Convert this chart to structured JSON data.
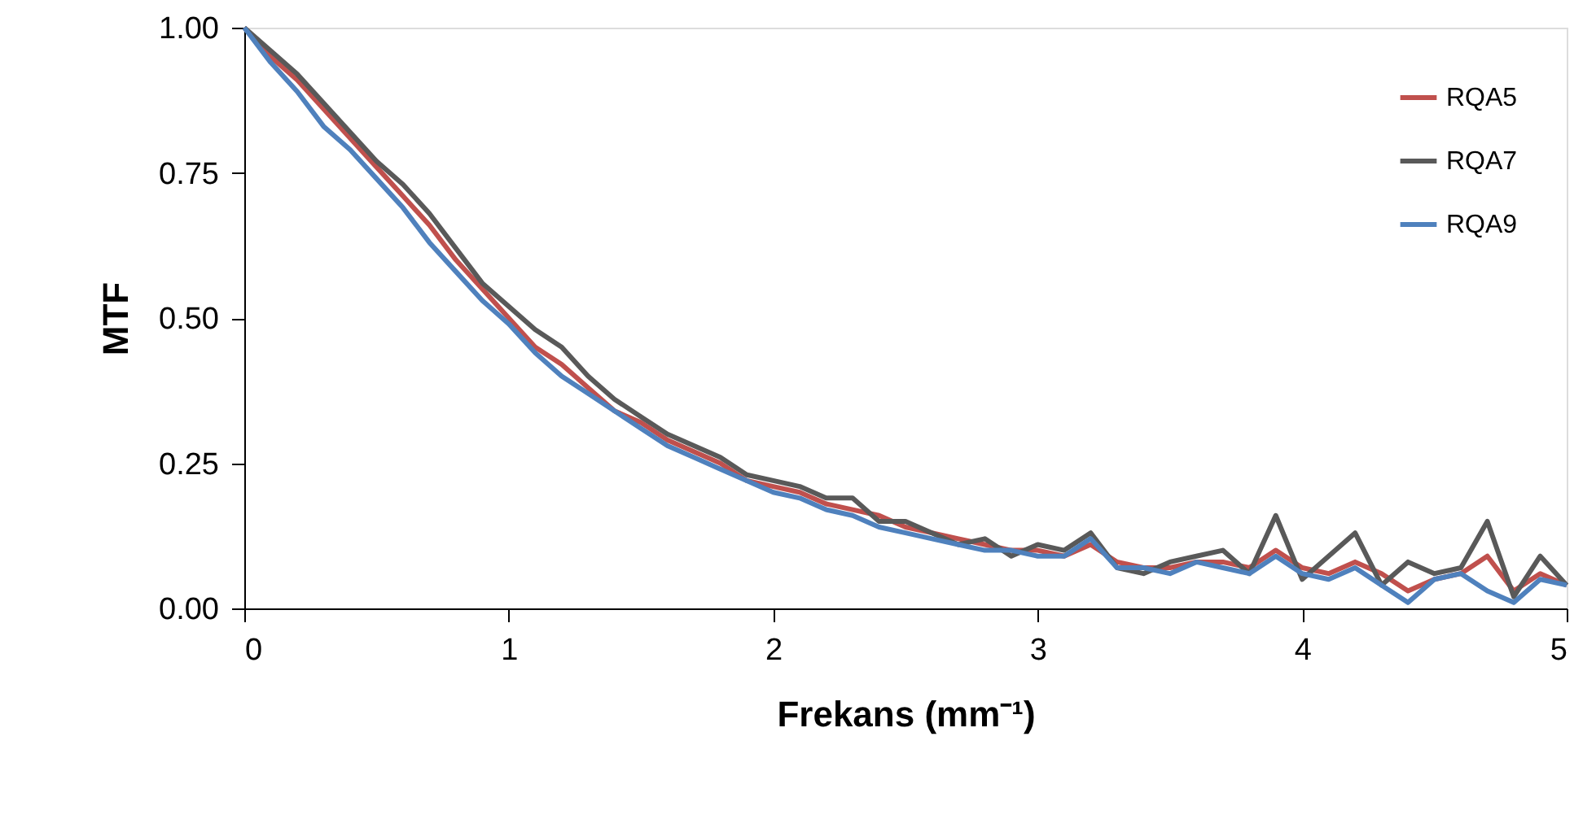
{
  "chart_data": {
    "type": "line",
    "xlabel": "Frekans (mm⁻¹)",
    "ylabel": "MTF",
    "x": [
      0,
      0.1,
      0.2,
      0.3,
      0.4,
      0.5,
      0.6,
      0.7,
      0.8,
      0.9,
      1.0,
      1.1,
      1.2,
      1.3,
      1.4,
      1.5,
      1.6,
      1.7,
      1.8,
      1.9,
      2.0,
      2.1,
      2.2,
      2.3,
      2.4,
      2.5,
      2.6,
      2.7,
      2.8,
      2.9,
      3.0,
      3.1,
      3.2,
      3.3,
      3.4,
      3.5,
      3.6,
      3.7,
      3.8,
      3.9,
      4.0,
      4.1,
      4.2,
      4.3,
      4.4,
      4.5,
      4.6,
      4.7,
      4.8,
      4.9,
      5.0
    ],
    "series": [
      {
        "name": "RQA5",
        "color": "#c0504d",
        "values": [
          1.0,
          0.95,
          0.91,
          0.86,
          0.81,
          0.76,
          0.71,
          0.66,
          0.6,
          0.55,
          0.5,
          0.45,
          0.42,
          0.38,
          0.34,
          0.32,
          0.29,
          0.27,
          0.25,
          0.22,
          0.21,
          0.2,
          0.18,
          0.17,
          0.16,
          0.14,
          0.13,
          0.12,
          0.11,
          0.1,
          0.1,
          0.09,
          0.11,
          0.08,
          0.07,
          0.07,
          0.08,
          0.08,
          0.07,
          0.1,
          0.07,
          0.06,
          0.08,
          0.06,
          0.03,
          0.05,
          0.06,
          0.09,
          0.03,
          0.06,
          0.04
        ]
      },
      {
        "name": "RQA7",
        "color": "#595959",
        "values": [
          1.0,
          0.96,
          0.92,
          0.87,
          0.82,
          0.77,
          0.73,
          0.68,
          0.62,
          0.56,
          0.52,
          0.48,
          0.45,
          0.4,
          0.36,
          0.33,
          0.3,
          0.28,
          0.26,
          0.23,
          0.22,
          0.21,
          0.19,
          0.19,
          0.15,
          0.15,
          0.13,
          0.11,
          0.12,
          0.09,
          0.11,
          0.1,
          0.13,
          0.07,
          0.06,
          0.08,
          0.09,
          0.1,
          0.06,
          0.16,
          0.05,
          0.09,
          0.13,
          0.04,
          0.08,
          0.06,
          0.07,
          0.15,
          0.02,
          0.09,
          0.04
        ]
      },
      {
        "name": "RQA9",
        "color": "#4f81bd",
        "values": [
          1.0,
          0.94,
          0.89,
          0.83,
          0.79,
          0.74,
          0.69,
          0.63,
          0.58,
          0.53,
          0.49,
          0.44,
          0.4,
          0.37,
          0.34,
          0.31,
          0.28,
          0.26,
          0.24,
          0.22,
          0.2,
          0.19,
          0.17,
          0.16,
          0.14,
          0.13,
          0.12,
          0.11,
          0.1,
          0.1,
          0.09,
          0.09,
          0.12,
          0.07,
          0.07,
          0.06,
          0.08,
          0.07,
          0.06,
          0.09,
          0.06,
          0.05,
          0.07,
          0.04,
          0.01,
          0.05,
          0.06,
          0.03,
          0.01,
          0.05,
          0.04
        ]
      }
    ],
    "xlim": [
      0,
      5
    ],
    "xticks": [
      0,
      1,
      2,
      3,
      4,
      5
    ],
    "ylim": [
      0,
      1
    ],
    "yticks": [
      {
        "value": 0,
        "label": "0.00"
      },
      {
        "value": 0.25,
        "label": "0.25"
      },
      {
        "value": 0.5,
        "label": "0.50"
      },
      {
        "value": 0.75,
        "label": "0.75"
      },
      {
        "value": 1,
        "label": "1.00"
      }
    ],
    "grid": false,
    "legend": "top right",
    "marker": "none",
    "line_style": "solid"
  }
}
